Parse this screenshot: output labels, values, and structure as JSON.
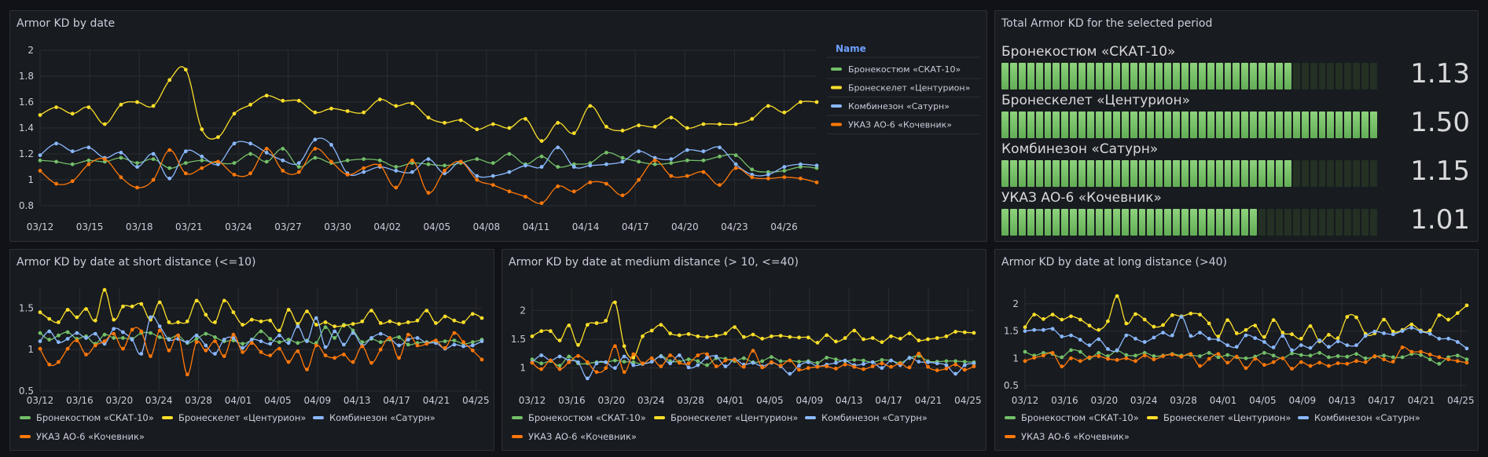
{
  "series_colors": [
    "#73bf69",
    "#fade2a",
    "#8ab8ff",
    "#ff780a"
  ],
  "series_names": [
    "Бронекостюм «СКАТ-10»",
    "Бронескелет «Центурион»",
    "Комбинезон «Сатурн»",
    "УКАЗ АО-6 «Кочевник»"
  ],
  "legend_header": "Name",
  "stat": {
    "title": "Total Armor KD for the selected period",
    "items": [
      {
        "name": "Бронекостюм «СКАТ-10»",
        "value": "1.13",
        "fraction": 0.77
      },
      {
        "name": "Бронескелет «Центурион»",
        "value": "1.50",
        "fraction": 1.0
      },
      {
        "name": "Комбинезон «Сатурн»",
        "value": "1.15",
        "fraction": 0.77
      },
      {
        "name": "УКАЗ АО-6 «Кочевник»",
        "value": "1.01",
        "fraction": 0.69
      }
    ]
  },
  "chart_data": [
    {
      "type": "line",
      "title": "Armor KD by date",
      "x": [
        "03/11",
        "03/12",
        "03/13",
        "03/14",
        "03/15",
        "03/16",
        "03/17",
        "03/18",
        "03/19",
        "03/20",
        "03/21",
        "03/22",
        "03/23",
        "03/24",
        "03/25",
        "03/26",
        "03/27",
        "03/28",
        "03/29",
        "03/30",
        "03/31",
        "04/01",
        "04/02",
        "04/03",
        "04/04",
        "04/05",
        "04/06",
        "04/07",
        "04/08",
        "04/09",
        "04/10",
        "04/11",
        "04/12",
        "04/13",
        "04/14",
        "04/15",
        "04/16",
        "04/17",
        "04/18",
        "04/19",
        "04/20",
        "04/21",
        "04/22",
        "04/23",
        "04/24",
        "04/25",
        "04/26",
        "04/27",
        "04/28"
      ],
      "x_ticks": [
        "03/12",
        "03/15",
        "03/18",
        "03/21",
        "03/24",
        "03/27",
        "03/30",
        "04/02",
        "04/05",
        "04/08",
        "04/11",
        "04/14",
        "04/17",
        "04/20",
        "04/23",
        "04/26"
      ],
      "y_ticks": [
        "0.8",
        "1",
        "1.2",
        "1.4",
        "1.6",
        "1.8",
        "2"
      ],
      "ylim": [
        0.8,
        2.0
      ],
      "legend": "right",
      "series": [
        {
          "name": "Бронекостюм «СКАТ-10»",
          "values": [
            1.15,
            1.14,
            1.12,
            1.15,
            1.14,
            1.17,
            1.13,
            1.16,
            1.09,
            1.13,
            1.15,
            1.13,
            1.13,
            1.2,
            1.14,
            1.24,
            1.1,
            1.17,
            1.13,
            1.15,
            1.16,
            1.15,
            1.1,
            1.13,
            1.12,
            1.11,
            1.13,
            1.16,
            1.13,
            1.2,
            1.12,
            1.18,
            1.1,
            1.12,
            1.13,
            1.21,
            1.17,
            1.14,
            1.12,
            1.13,
            1.15,
            1.15,
            1.18,
            1.19,
            1.08,
            1.06,
            1.07,
            1.1,
            1.09
          ]
        },
        {
          "name": "Бронескелет «Центурион»",
          "values": [
            1.5,
            1.56,
            1.51,
            1.56,
            1.43,
            1.58,
            1.6,
            1.57,
            1.77,
            1.85,
            1.39,
            1.33,
            1.51,
            1.58,
            1.65,
            1.61,
            1.61,
            1.52,
            1.55,
            1.53,
            1.52,
            1.62,
            1.57,
            1.59,
            1.48,
            1.44,
            1.46,
            1.39,
            1.43,
            1.4,
            1.47,
            1.3,
            1.44,
            1.36,
            1.57,
            1.41,
            1.38,
            1.42,
            1.41,
            1.48,
            1.4,
            1.43,
            1.43,
            1.43,
            1.47,
            1.57,
            1.52,
            1.6,
            1.6
          ]
        },
        {
          "name": "Комбинезон «Сатурн»",
          "values": [
            1.19,
            1.28,
            1.22,
            1.25,
            1.17,
            1.21,
            1.1,
            1.2,
            1.01,
            1.22,
            1.18,
            1.12,
            1.28,
            1.28,
            1.21,
            1.15,
            1.13,
            1.31,
            1.27,
            1.05,
            1.06,
            1.1,
            1.07,
            1.06,
            1.16,
            1.05,
            1.14,
            1.03,
            1.03,
            1.06,
            1.11,
            1.1,
            1.25,
            1.1,
            1.11,
            1.12,
            1.14,
            1.22,
            1.17,
            1.16,
            1.23,
            1.22,
            1.25,
            1.12,
            1.04,
            1.04,
            1.1,
            1.12,
            1.11
          ]
        },
        {
          "name": "УКАЗ АО-6 «Кочевник»",
          "values": [
            1.07,
            0.97,
            0.99,
            1.12,
            1.16,
            1.02,
            0.94,
            1.0,
            1.23,
            1.05,
            1.09,
            1.14,
            1.04,
            1.05,
            1.24,
            1.07,
            1.06,
            1.24,
            1.14,
            1.04,
            1.09,
            1.11,
            0.94,
            1.15,
            0.9,
            1.07,
            1.14,
            1.0,
            0.96,
            0.91,
            0.87,
            0.82,
            0.95,
            0.91,
            0.98,
            0.97,
            0.88,
            1.0,
            1.15,
            1.03,
            1.03,
            1.06,
            0.96,
            1.09,
            1.02,
            1.01,
            1.02,
            1.01,
            0.98
          ]
        }
      ]
    },
    {
      "type": "line",
      "title": "Armor KD by date at short distance (<=10)",
      "x_ticks": [
        "03/12",
        "03/16",
        "03/20",
        "03/24",
        "03/28",
        "04/01",
        "04/05",
        "04/09",
        "04/13",
        "04/17",
        "04/21",
        "04/25"
      ],
      "y_ticks": [
        "0.5",
        "1",
        "1.5"
      ],
      "ylim": [
        0.5,
        1.75
      ],
      "legend": "bottom",
      "series": [
        {
          "name": "Бронекостюм «СКАТ-10»",
          "values": [
            1.2,
            1.12,
            1.17,
            1.21,
            1.13,
            1.16,
            1.07,
            1.18,
            1.14,
            1.14,
            1.13,
            1.2,
            1.2,
            1.15,
            1.13,
            1.17,
            1.08,
            1.13,
            1.19,
            1.15,
            1.1,
            1.11,
            1.07,
            1.12,
            1.22,
            1.13,
            1.09,
            1.12,
            1.08,
            1.11,
            1.08,
            1.27,
            1.14,
            1.3,
            1.23,
            1.09,
            1.13,
            1.09,
            1.12,
            1.15,
            1.06,
            1.08,
            1.09,
            1.09,
            1.1,
            1.11,
            1.07,
            1.09,
            1.12
          ]
        },
        {
          "name": "Бронескелет «Центурион»",
          "values": [
            1.45,
            1.37,
            1.33,
            1.48,
            1.39,
            1.49,
            1.35,
            1.72,
            1.36,
            1.52,
            1.52,
            1.55,
            1.36,
            1.57,
            1.33,
            1.33,
            1.34,
            1.59,
            1.42,
            1.33,
            1.59,
            1.45,
            1.3,
            1.36,
            1.34,
            1.35,
            1.23,
            1.48,
            1.31,
            1.46,
            1.3,
            1.33,
            1.28,
            1.29,
            1.31,
            1.34,
            1.47,
            1.32,
            1.34,
            1.31,
            1.33,
            1.35,
            1.47,
            1.32,
            1.4,
            1.35,
            1.33,
            1.43,
            1.38
          ]
        },
        {
          "name": "Комбинезон «Сатурн»",
          "values": [
            1.1,
            1.22,
            1.09,
            1.13,
            1.2,
            1.14,
            1.19,
            1.07,
            1.25,
            1.21,
            1.12,
            0.95,
            1.39,
            1.28,
            1.12,
            1.13,
            1.09,
            1.17,
            1.05,
            0.95,
            1.12,
            1.14,
            1.02,
            1.12,
            1.1,
            1.07,
            1.17,
            1.08,
            1.28,
            1.1,
            1.38,
            1.03,
            1.22,
            1.06,
            1.2,
            1.05,
            1.14,
            1.19,
            1.14,
            1.05,
            1.12,
            1.14,
            1.08,
            1.08,
            1.01,
            1.06,
            1.04,
            1.05,
            1.1
          ]
        },
        {
          "name": "УКАЗ АО-6 «Кочевник»",
          "values": [
            1.01,
            0.82,
            0.85,
            1.01,
            1.11,
            0.94,
            1.05,
            1.1,
            1.19,
            1.01,
            1.24,
            1.22,
            0.92,
            1.23,
            0.99,
            1.17,
            0.7,
            1.09,
            0.99,
            1.1,
            0.92,
            1.18,
            0.97,
            1.08,
            0.97,
            0.93,
            1.01,
            0.85,
            0.98,
            0.76,
            1.05,
            0.93,
            0.9,
            0.94,
            0.85,
            1.04,
            0.84,
            1.0,
            1.14,
            0.9,
            1.18,
            1.05,
            1.07,
            1.11,
            1.02,
            1.2,
            1.09,
            0.99,
            0.88
          ]
        }
      ]
    },
    {
      "type": "line",
      "title": "Armor KD by date at medium distance (> 10, <=40)",
      "x_ticks": [
        "03/12",
        "03/16",
        "03/20",
        "03/24",
        "03/28",
        "04/01",
        "04/05",
        "04/09",
        "04/13",
        "04/17",
        "04/21",
        "04/25"
      ],
      "y_ticks": [
        "1",
        "1.5",
        "2"
      ],
      "ylim": [
        0.6,
        2.4
      ],
      "legend": "bottom",
      "series": [
        {
          "name": "Бронекостюм «СКАТ-10»",
          "values": [
            1.15,
            1.08,
            1.12,
            1.04,
            1.2,
            1.08,
            1.08,
            1.1,
            1.1,
            1.13,
            1.11,
            1.1,
            1.07,
            1.11,
            1.21,
            1.12,
            1.11,
            1.15,
            1.12,
            1.05,
            1.17,
            1.16,
            1.12,
            1.17,
            1.1,
            1.12,
            1.19,
            1.12,
            1.13,
            1.11,
            1.12,
            1.09,
            1.18,
            1.15,
            1.12,
            1.14,
            1.13,
            1.1,
            1.14,
            1.13,
            1.09,
            1.17,
            1.21,
            1.12,
            1.11,
            1.12,
            1.12,
            1.11,
            1.1
          ]
        },
        {
          "name": "Бронескелет «Центурион»",
          "values": [
            1.55,
            1.64,
            1.64,
            1.48,
            1.74,
            1.4,
            1.75,
            1.78,
            1.82,
            2.14,
            1.38,
            1.18,
            1.55,
            1.65,
            1.75,
            1.6,
            1.57,
            1.59,
            1.55,
            1.54,
            1.56,
            1.6,
            1.71,
            1.54,
            1.58,
            1.51,
            1.55,
            1.56,
            1.54,
            1.53,
            1.53,
            1.44,
            1.57,
            1.46,
            1.52,
            1.65,
            1.5,
            1.52,
            1.45,
            1.55,
            1.51,
            1.6,
            1.48,
            1.5,
            1.52,
            1.55,
            1.63,
            1.62,
            1.61
          ]
        },
        {
          "name": "Комбинезон «Сатурн»",
          "values": [
            1.1,
            1.22,
            1.13,
            1.2,
            1.13,
            1.1,
            0.82,
            1.08,
            1.1,
            1.0,
            1.2,
            1.05,
            1.07,
            1.11,
            1.2,
            1.08,
            1.22,
            1.01,
            1.05,
            1.18,
            1.2,
            1.03,
            1.15,
            1.06,
            1.09,
            1.03,
            1.09,
            1.03,
            0.9,
            1.04,
            1.1,
            1.03,
            1.06,
            1.09,
            1.13,
            1.05,
            1.07,
            1.1,
            1.0,
            1.13,
            1.05,
            1.18,
            1.11,
            1.1,
            1.08,
            1.05,
            0.9,
            1.05,
            1.08
          ]
        },
        {
          "name": "УКАЗ АО-6 «Кочевник»",
          "values": [
            1.09,
            0.98,
            1.13,
            0.98,
            1.1,
            1.21,
            1.1,
            0.93,
            1.0,
            1.38,
            0.93,
            1.24,
            1.08,
            1.17,
            1.03,
            1.22,
            1.09,
            1.08,
            1.22,
            1.24,
            1.03,
            1.13,
            1.14,
            1.02,
            1.3,
            1.01,
            1.1,
            1.04,
            1.13,
            0.97,
            1.0,
            1.02,
            1.03,
            0.99,
            1.06,
            1.02,
            0.98,
            1.03,
            1.08,
            1.02,
            1.08,
            1.01,
            1.25,
            1.02,
            0.96,
            0.99,
            1.06,
            0.97,
            1.03
          ]
        }
      ]
    },
    {
      "type": "line",
      "title": "Armor KD by date at long distance (>40)",
      "x_ticks": [
        "03/12",
        "03/16",
        "03/20",
        "03/24",
        "03/28",
        "04/01",
        "04/05",
        "04/09",
        "04/13",
        "04/17",
        "04/21",
        "04/25"
      ],
      "y_ticks": [
        "0.5",
        "1",
        "1.5",
        "2"
      ],
      "ylim": [
        0.4,
        2.3
      ],
      "legend": "bottom",
      "series": [
        {
          "name": "Бронекостюм «СКАТ-10»",
          "values": [
            1.12,
            1.05,
            1.1,
            1.08,
            1.02,
            1.15,
            1.12,
            1.0,
            1.1,
            1.04,
            1.14,
            1.06,
            1.05,
            1.1,
            1.04,
            1.05,
            1.08,
            1.05,
            1.06,
            1.04,
            1.1,
            1.02,
            1.06,
            1.02,
            1.0,
            1.03,
            1.1,
            1.05,
            1.0,
            1.09,
            1.06,
            1.05,
            1.1,
            1.02,
            1.04,
            1.03,
            1.08,
            1.0,
            1.03,
            1.05,
            1.02,
            1.02,
            1.08,
            1.06,
            0.98,
            0.9,
            1.02,
            1.05,
            0.98
          ]
        },
        {
          "name": "Бронескелет «Центурион»",
          "values": [
            1.57,
            1.8,
            1.72,
            1.8,
            1.71,
            1.77,
            1.71,
            1.6,
            1.52,
            1.68,
            2.14,
            1.64,
            1.81,
            1.71,
            1.58,
            1.61,
            1.79,
            1.77,
            1.82,
            1.8,
            1.64,
            1.4,
            1.7,
            1.46,
            1.52,
            1.6,
            1.39,
            1.7,
            1.47,
            1.44,
            1.36,
            1.59,
            1.31,
            1.43,
            1.37,
            1.76,
            1.75,
            1.45,
            1.46,
            1.71,
            1.49,
            1.52,
            1.62,
            1.51,
            1.51,
            1.79,
            1.71,
            1.83,
            1.97
          ]
        },
        {
          "name": "Комбинезон «Сатурн»",
          "values": [
            1.5,
            1.52,
            1.52,
            1.54,
            1.4,
            1.42,
            1.34,
            1.24,
            1.35,
            1.17,
            1.15,
            1.42,
            1.36,
            1.3,
            1.38,
            1.47,
            1.42,
            1.76,
            1.41,
            1.47,
            1.36,
            1.34,
            1.24,
            1.21,
            1.42,
            1.37,
            1.3,
            1.2,
            1.41,
            1.15,
            1.24,
            1.19,
            1.33,
            1.21,
            1.31,
            1.24,
            1.24,
            1.41,
            1.49,
            1.46,
            1.44,
            1.5,
            1.56,
            1.49,
            1.45,
            1.36,
            1.36,
            1.3,
            1.18
          ]
        },
        {
          "name": "УКАЗ АО-6 «Кочевник»",
          "values": [
            0.95,
            1.01,
            1.05,
            1.1,
            0.85,
            1.0,
            0.95,
            1.02,
            1.04,
            0.99,
            0.97,
            1.0,
            0.95,
            1.05,
            0.98,
            1.04,
            1.07,
            1.03,
            1.08,
            0.86,
            0.99,
            1.08,
            0.92,
            1.03,
            0.82,
            0.99,
            0.88,
            0.93,
            1.0,
            0.81,
            0.93,
            0.86,
            0.92,
            0.86,
            0.91,
            0.9,
            0.95,
            0.93,
            1.04,
            0.98,
            0.94,
            1.2,
            1.12,
            1.12,
            1.07,
            1.02,
            0.98,
            0.95,
            0.92
          ]
        }
      ]
    }
  ]
}
